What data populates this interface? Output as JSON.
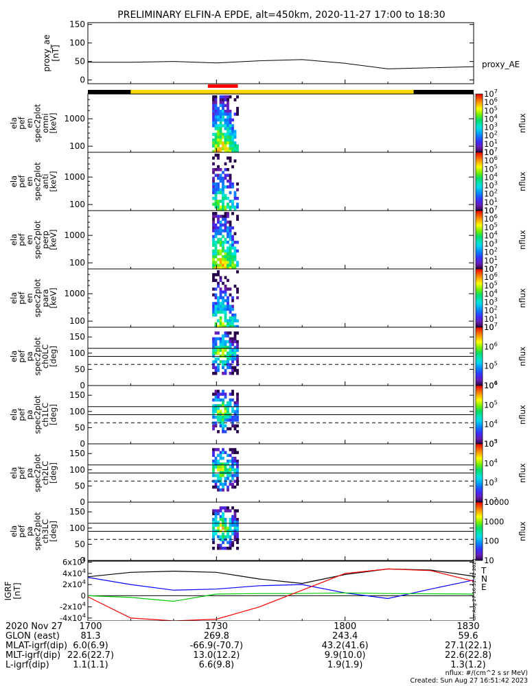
{
  "title": "PRELIMINARY ELFIN-A EPDE, alt=450km, 2020-11-27 17:00 to 18:30",
  "time_axis": {
    "start": "17:00",
    "end": "18:30"
  },
  "bar_segments": [
    {
      "from": "17:00",
      "to": "17:10",
      "color": "#000000"
    },
    {
      "from": "17:10",
      "to": "18:16",
      "color": "#ffd700"
    },
    {
      "from": "18:16",
      "to": "18:30",
      "color": "#000000"
    },
    {
      "from": "17:28",
      "to": "17:35",
      "color": "#ff0000",
      "raised": true
    }
  ],
  "chart_data": [
    {
      "name": "proxy_ae",
      "type": "line",
      "ylabel": [
        "proxy_ae",
        "[nT]"
      ],
      "legend": "proxy_AE",
      "ylim": [
        -10,
        155
      ],
      "yticks": [
        "0",
        "50",
        "100",
        "150"
      ],
      "x": [
        "17:00",
        "17:10",
        "17:20",
        "17:30",
        "17:40",
        "17:50",
        "18:00",
        "18:10",
        "18:20",
        "18:30"
      ],
      "values": [
        48,
        48,
        50,
        46,
        52,
        55,
        45,
        30,
        33,
        36
      ]
    },
    {
      "name": "spec2plot_omni",
      "type": "heatmap",
      "ylabel": [
        "ela",
        "pef",
        "en",
        "spec2plot",
        "omni",
        "[keV]"
      ],
      "ylog": true,
      "ylim": [
        60,
        8000
      ],
      "yticks": [
        "100",
        "1000"
      ],
      "colorbar": {
        "label": "nflux",
        "range": [
          "10^1",
          "10^7"
        ],
        "ticks": [
          "10",
          "10^1",
          "10^2",
          "10^3",
          "10^4",
          "10^5",
          "10^6",
          "10^7"
        ]
      },
      "active": [
        "17:29",
        "17:35"
      ]
    },
    {
      "name": "spec2plot_anti",
      "type": "heatmap",
      "ylabel": [
        "ela",
        "pef",
        "en",
        "spec2plot",
        "anti",
        "[keV]"
      ],
      "ylog": true,
      "ylim": [
        60,
        8000
      ],
      "yticks": [
        "100",
        "1000"
      ],
      "colorbar": {
        "label": "nflux",
        "range": [
          "10^1",
          "10^7"
        ],
        "ticks": [
          "10",
          "10^1",
          "10^2",
          "10^3",
          "10^4",
          "10^5",
          "10^6",
          "10^7"
        ]
      },
      "active": [
        "17:29",
        "17:35"
      ]
    },
    {
      "name": "spec2plot_perp",
      "type": "heatmap",
      "ylabel": [
        "ela",
        "pef",
        "en",
        "spec2plot",
        "perp",
        "[keV]"
      ],
      "ylog": true,
      "ylim": [
        60,
        8000
      ],
      "yticks": [
        "100",
        "1000"
      ],
      "colorbar": {
        "label": "nflux",
        "range": [
          "10^1",
          "10^7"
        ],
        "ticks": [
          "10",
          "10^1",
          "10^2",
          "10^3",
          "10^4",
          "10^5",
          "10^6",
          "10^7"
        ]
      },
      "active": [
        "17:29",
        "17:35"
      ]
    },
    {
      "name": "spec2plot_para",
      "type": "heatmap",
      "ylabel": [
        "ela",
        "pef",
        "en",
        "spec2plot",
        "para",
        "[keV]"
      ],
      "ylog": true,
      "ylim": [
        60,
        8000
      ],
      "yticks": [
        "100",
        "1000"
      ],
      "colorbar": {
        "label": "nflux",
        "range": [
          "10^1",
          "10^7"
        ],
        "ticks": [
          "10",
          "10^1",
          "10^2",
          "10^3",
          "10^4",
          "10^5",
          "10^6",
          "10^7"
        ]
      },
      "active": [
        "17:29",
        "17:35"
      ]
    },
    {
      "name": "spec2plot_ch0LC",
      "type": "heatmap",
      "ylabel": [
        "ela",
        "pef",
        "pa",
        "spec2plot",
        "ch0LC",
        "[deg]"
      ],
      "ylim": [
        0,
        180
      ],
      "yticks": [
        "0",
        "50",
        "100",
        "150"
      ],
      "lines": [
        115,
        90
      ],
      "dashed": 65,
      "colorbar": {
        "label": "nflux",
        "range": [
          "10^3.5",
          "10^7"
        ],
        "ticks": [
          "10^4",
          "10^5",
          "10^6",
          "10^7"
        ]
      },
      "active": [
        "17:29",
        "17:35"
      ]
    },
    {
      "name": "spec2plot_ch1LC",
      "type": "heatmap",
      "ylabel": [
        "ela",
        "pef",
        "pa",
        "spec2plot",
        "ch1LC",
        "[deg]"
      ],
      "ylim": [
        0,
        180
      ],
      "yticks": [
        "0",
        "50",
        "100",
        "150"
      ],
      "lines": [
        115,
        90
      ],
      "dashed": 65,
      "colorbar": {
        "label": "nflux",
        "range": [
          "10^3",
          "10^6"
        ],
        "ticks": [
          "10^3",
          "10^4",
          "10^5",
          "10^6"
        ]
      },
      "active": [
        "17:29",
        "17:35"
      ]
    },
    {
      "name": "spec2plot_ch2LC",
      "type": "heatmap",
      "ylabel": [
        "ela",
        "pef",
        "pa",
        "spec2plot",
        "ch2LC",
        "[deg]"
      ],
      "ylim": [
        0,
        180
      ],
      "yticks": [
        "0",
        "50",
        "100",
        "150"
      ],
      "lines": [
        115,
        90
      ],
      "dashed": 65,
      "colorbar": {
        "label": "nflux",
        "range": [
          "10^2",
          "10^5"
        ],
        "ticks": [
          "10^2",
          "10^3",
          "10^4",
          "10^5"
        ]
      },
      "active": [
        "17:29",
        "17:35"
      ]
    },
    {
      "name": "spec2plot_ch3LC",
      "type": "heatmap",
      "ylabel": [
        "ela",
        "pef",
        "pa",
        "spec2plot",
        "ch3LC",
        "[deg]"
      ],
      "ylim": [
        0,
        180
      ],
      "yticks": [
        "0",
        "50",
        "100",
        "150"
      ],
      "lines": [
        115,
        90
      ],
      "dashed": 65,
      "colorbar": {
        "label": "nflux",
        "range": [
          "10",
          "10000"
        ],
        "ticks": [
          "10",
          "100",
          "1000",
          "10000"
        ]
      },
      "active": [
        "17:29",
        "17:35"
      ]
    },
    {
      "name": "igrf",
      "type": "line",
      "ylabel": [
        "IGRF",
        "[nT]"
      ],
      "ylim": [
        -45000,
        62000
      ],
      "yticks": [
        "-4x10^4",
        "-2x10^4",
        "0",
        "2x10^4",
        "4x10^4",
        "6x10^4"
      ],
      "yticks_values": [
        -40000,
        -20000,
        0,
        20000,
        40000,
        60000
      ],
      "legend": [
        {
          "label": "T",
          "color": "#000000"
        },
        {
          "label": "N",
          "color": "#ff0000"
        },
        {
          "label": "E",
          "color": "#00cc00"
        }
      ],
      "x": [
        "17:00",
        "17:10",
        "17:20",
        "17:30",
        "17:40",
        "17:50",
        "18:00",
        "18:10",
        "18:20",
        "18:30"
      ],
      "series": [
        {
          "color": "#000000",
          "values": [
            34000,
            42000,
            44000,
            42000,
            30000,
            22000,
            38000,
            48000,
            46000,
            35000
          ]
        },
        {
          "color": "#0000ff",
          "values": [
            33000,
            20000,
            10000,
            12000,
            18000,
            20000,
            5000,
            -5000,
            12000,
            28000
          ]
        },
        {
          "color": "#00cc00",
          "values": [
            0,
            -3000,
            -10000,
            3000,
            4000,
            4000,
            5000,
            4000,
            3500,
            3000
          ]
        },
        {
          "color": "#ff0000",
          "values": [
            -2000,
            -40000,
            -45000,
            -42000,
            -20000,
            10000,
            40000,
            48000,
            45000,
            26000
          ]
        }
      ]
    }
  ],
  "side_stamp": "Sun Aug 27 16:51:42 2023",
  "bottom_table": {
    "rows": [
      {
        "label": "2020 Nov 27",
        "values": [
          "1700",
          "1730",
          "1800",
          "1830"
        ]
      },
      {
        "label": "GLON (east)",
        "values": [
          "81.3",
          "269.8",
          "243.4",
          "59.6"
        ]
      },
      {
        "label": "MLAT-igrf(dip)",
        "values": [
          "6.0(6.9)",
          "-66.9(-70.7)",
          "43.2(41.6)",
          "27.1(22.1)"
        ]
      },
      {
        "label": "MLT-igrf(dip)",
        "values": [
          "22.6(22.7)",
          "13.0(12.2)",
          "9.9(10.0)",
          "22.6(22.8)"
        ]
      },
      {
        "label": "L-igrf(dip)",
        "values": [
          "1.1(1.1)",
          "6.6(9.8)",
          "1.9(1.9)",
          "1.3(1.2)"
        ]
      }
    ]
  },
  "footer": {
    "units": "nflux: #/(cm^2 s sr MeV)",
    "created": "Created: Sun Aug 27 16:51:42 2023"
  }
}
